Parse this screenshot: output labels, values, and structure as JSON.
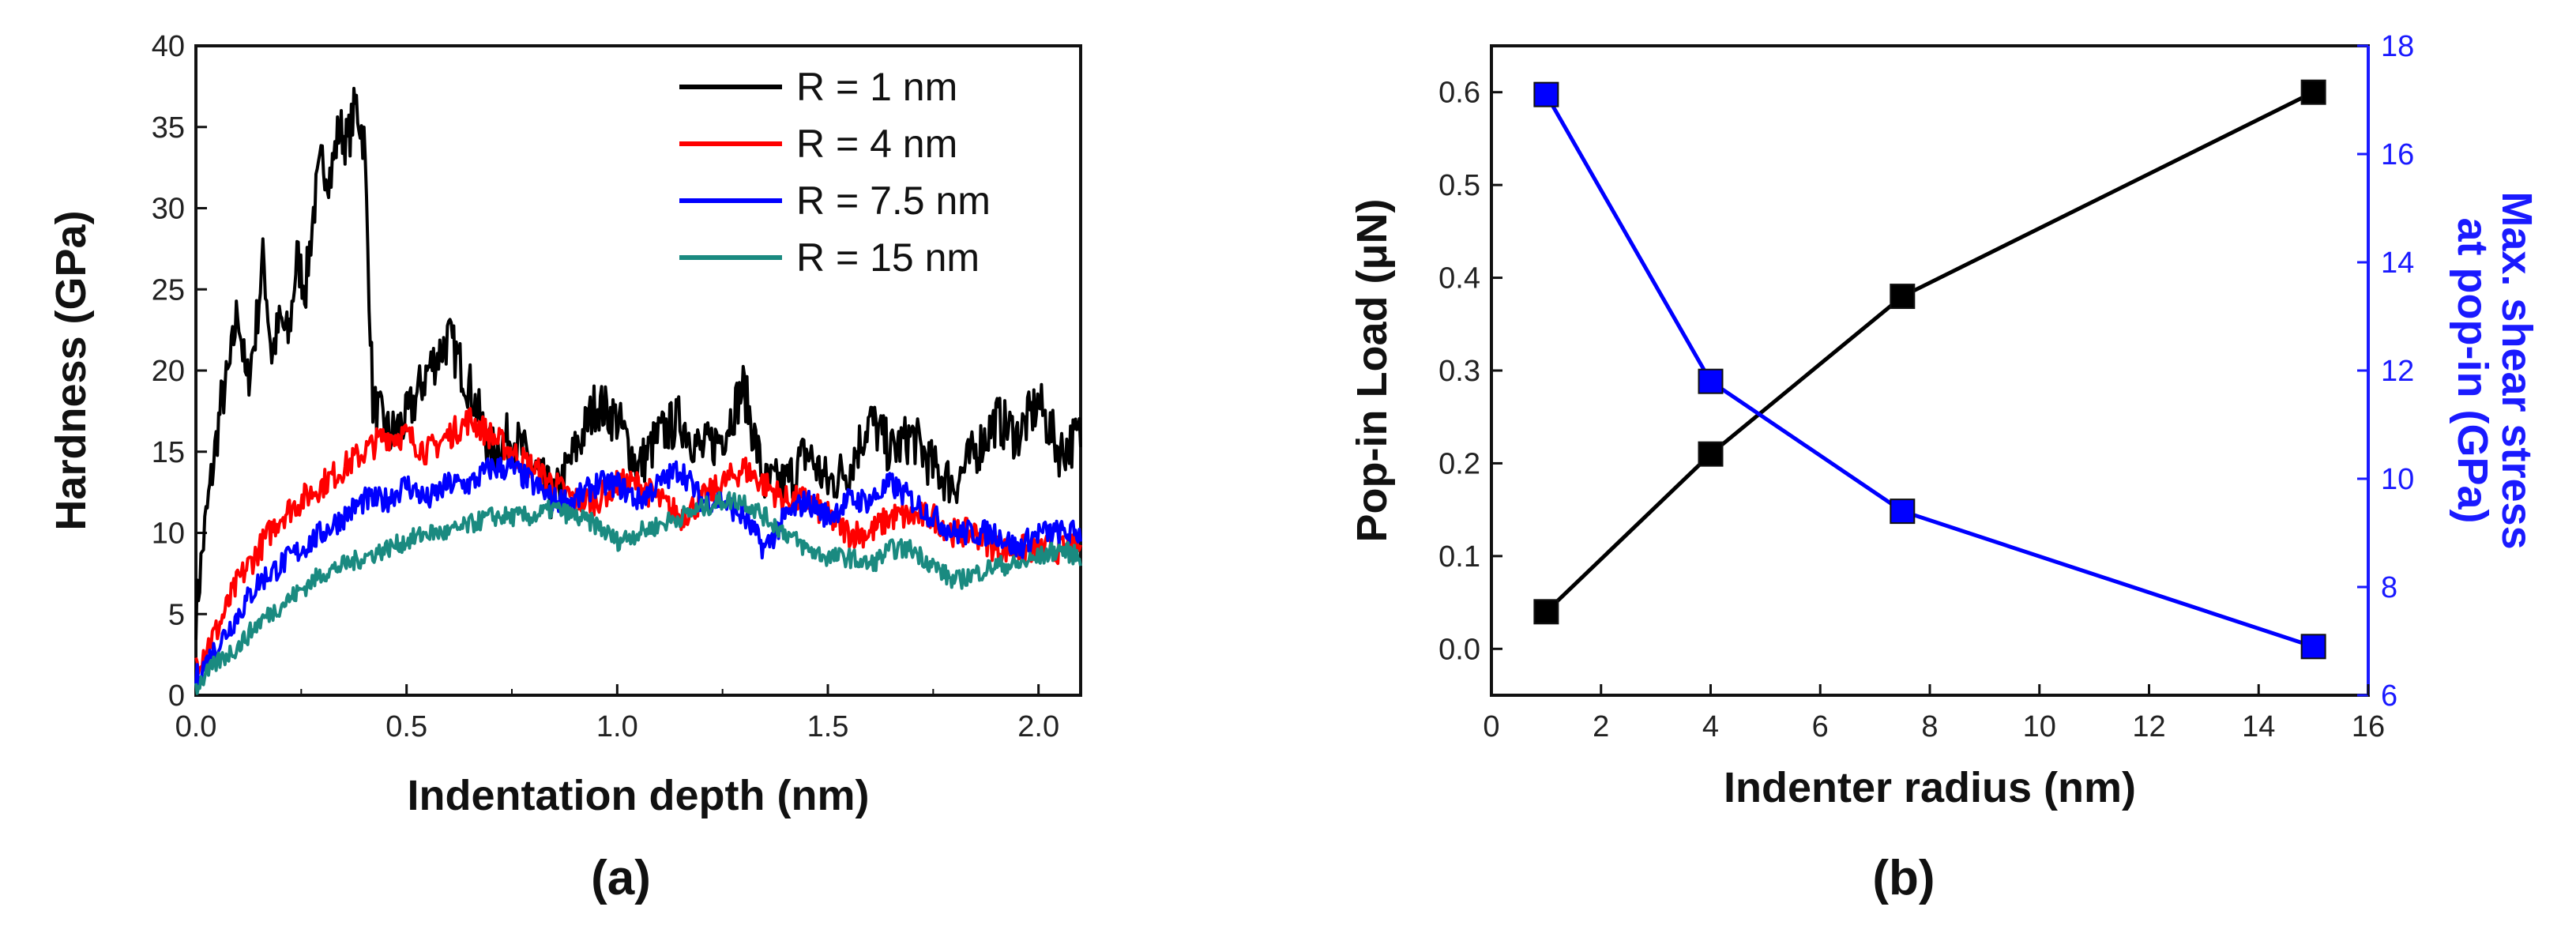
{
  "chart_data": [
    {
      "panel": "(a)",
      "type": "line",
      "xlabel": "Indentation depth (nm)",
      "ylabel": "Hardness (GPa)",
      "xlim": [
        0,
        2.1
      ],
      "ylim": [
        0,
        40
      ],
      "xticks": [
        0.0,
        0.5,
        1.0,
        1.5,
        2.0
      ],
      "xtick_labels": [
        "0.0",
        "0.5",
        "1.0",
        "1.5",
        "2.0"
      ],
      "yticks": [
        0,
        5,
        10,
        15,
        20,
        25,
        30,
        35,
        40
      ],
      "ytick_labels": [
        "0",
        "5",
        "10",
        "15",
        "20",
        "25",
        "30",
        "35",
        "40"
      ],
      "legend_position": "top-right",
      "series": [
        {
          "name": "R = 1 nm",
          "color": "#000000",
          "x": [
            0.0,
            0.02,
            0.04,
            0.06,
            0.08,
            0.1,
            0.12,
            0.14,
            0.16,
            0.18,
            0.2,
            0.22,
            0.24,
            0.26,
            0.28,
            0.3,
            0.32,
            0.34,
            0.36,
            0.38,
            0.4,
            0.42,
            0.44,
            0.46,
            0.5,
            0.55,
            0.6,
            0.65,
            0.7,
            0.75,
            0.8,
            0.85,
            0.9,
            0.95,
            1.0,
            1.05,
            1.1,
            1.15,
            1.2,
            1.25,
            1.3,
            1.35,
            1.4,
            1.45,
            1.5,
            1.55,
            1.6,
            1.65,
            1.7,
            1.75,
            1.8,
            1.85,
            1.9,
            1.95,
            2.0,
            2.05,
            2.1
          ],
          "y": [
            5,
            10,
            14,
            18,
            20,
            24,
            19,
            22,
            27,
            21,
            23,
            22,
            27,
            25,
            30,
            33,
            32,
            35,
            34,
            36.5,
            34,
            18,
            17,
            16,
            17,
            20,
            22,
            19,
            15,
            16,
            14,
            12,
            15,
            18,
            17,
            14,
            16,
            17,
            15,
            16,
            19,
            13,
            13,
            15,
            13,
            14,
            17,
            15,
            16,
            14,
            13,
            15,
            17,
            16,
            18,
            15,
            16
          ]
        },
        {
          "name": "R = 4 nm",
          "color": "#ff0000",
          "x": [
            0.0,
            0.05,
            0.1,
            0.15,
            0.2,
            0.25,
            0.3,
            0.35,
            0.4,
            0.45,
            0.5,
            0.55,
            0.6,
            0.65,
            0.7,
            0.75,
            0.8,
            0.85,
            0.9,
            0.95,
            1.0,
            1.05,
            1.1,
            1.15,
            1.2,
            1.25,
            1.3,
            1.35,
            1.4,
            1.45,
            1.5,
            1.55,
            1.6,
            1.65,
            1.7,
            1.75,
            1.8,
            1.85,
            1.9,
            1.95,
            2.0,
            2.05,
            2.1
          ],
          "y": [
            2,
            4,
            7,
            9,
            11,
            12,
            13,
            14,
            15,
            16,
            16,
            15,
            16,
            17,
            16,
            15,
            14,
            13,
            12,
            12,
            13,
            13,
            12,
            11,
            12,
            13,
            14,
            13,
            12,
            12,
            11,
            10,
            10,
            11,
            11,
            11,
            10,
            10,
            9,
            9,
            9,
            9,
            9
          ]
        },
        {
          "name": "R = 7.5 nm",
          "color": "#0000ff",
          "x": [
            0.0,
            0.05,
            0.1,
            0.15,
            0.2,
            0.25,
            0.3,
            0.35,
            0.4,
            0.45,
            0.5,
            0.55,
            0.6,
            0.65,
            0.7,
            0.75,
            0.8,
            0.85,
            0.9,
            0.95,
            1.0,
            1.05,
            1.1,
            1.15,
            1.2,
            1.25,
            1.3,
            1.35,
            1.4,
            1.45,
            1.5,
            1.55,
            1.6,
            1.65,
            1.7,
            1.75,
            1.8,
            1.85,
            1.9,
            1.95,
            2.0,
            2.05,
            2.1
          ],
          "y": [
            1,
            3,
            5,
            7,
            8,
            9,
            10,
            11,
            12,
            12,
            13,
            12,
            13,
            13,
            14,
            14,
            13,
            12,
            12,
            13,
            13,
            12,
            13,
            14,
            12,
            12,
            11,
            9,
            11,
            12,
            11,
            12,
            12,
            13,
            12,
            11,
            10,
            10,
            10,
            9,
            10,
            10,
            10
          ]
        },
        {
          "name": "R = 15 nm",
          "color": "#1a8a80",
          "x": [
            0.0,
            0.05,
            0.1,
            0.15,
            0.2,
            0.25,
            0.3,
            0.35,
            0.4,
            0.45,
            0.5,
            0.55,
            0.6,
            0.65,
            0.7,
            0.75,
            0.8,
            0.85,
            0.9,
            0.95,
            1.0,
            1.05,
            1.1,
            1.15,
            1.2,
            1.25,
            1.3,
            1.35,
            1.4,
            1.45,
            1.5,
            1.55,
            1.6,
            1.65,
            1.7,
            1.75,
            1.8,
            1.85,
            1.9,
            1.95,
            2.0,
            2.05,
            2.1
          ],
          "y": [
            0.5,
            2,
            3,
            4.5,
            5.5,
            6.5,
            7.5,
            8,
            8.5,
            9,
            9.5,
            10,
            10,
            10.5,
            11,
            11,
            11,
            11.5,
            11,
            10.5,
            9.5,
            10,
            10.5,
            11,
            11.5,
            12,
            12,
            11,
            10,
            9,
            8.5,
            8.5,
            8,
            9,
            9,
            8,
            7,
            7.5,
            8,
            8,
            8.5,
            9,
            8.5
          ]
        }
      ]
    },
    {
      "panel": "(b)",
      "type": "line",
      "xlabel": "Indenter radius (nm)",
      "ylabel": "Pop-in Load (μN)",
      "y2label_line1": "Max. shear stress",
      "y2label_line2": "at pop-in (GPa)",
      "xlim": [
        0,
        16
      ],
      "ylim": [
        -0.05,
        0.65
      ],
      "y2lim": [
        6,
        18
      ],
      "xticks": [
        0,
        2,
        4,
        6,
        8,
        10,
        12,
        14,
        16
      ],
      "xtick_labels": [
        "0",
        "2",
        "4",
        "6",
        "8",
        "10",
        "12",
        "14",
        "16"
      ],
      "yticks": [
        0.0,
        0.1,
        0.2,
        0.3,
        0.4,
        0.5,
        0.6
      ],
      "ytick_labels": [
        "0.0",
        "0.1",
        "0.2",
        "0.3",
        "0.4",
        "0.5",
        "0.6"
      ],
      "y2ticks": [
        6,
        8,
        10,
        12,
        14,
        16,
        18
      ],
      "y2tick_labels": [
        "6",
        "8",
        "10",
        "12",
        "14",
        "16",
        "18"
      ],
      "series": [
        {
          "name": "Pop-in Load",
          "axis": "left",
          "color": "#000000",
          "x": [
            1,
            4,
            7.5,
            15
          ],
          "y": [
            0.04,
            0.21,
            0.38,
            0.6
          ]
        },
        {
          "name": "Max. shear stress at pop-in",
          "axis": "right",
          "color": "#0000ff",
          "x": [
            1,
            4,
            7.5,
            15
          ],
          "y": [
            17.1,
            11.8,
            9.4,
            6.9
          ]
        }
      ]
    }
  ]
}
